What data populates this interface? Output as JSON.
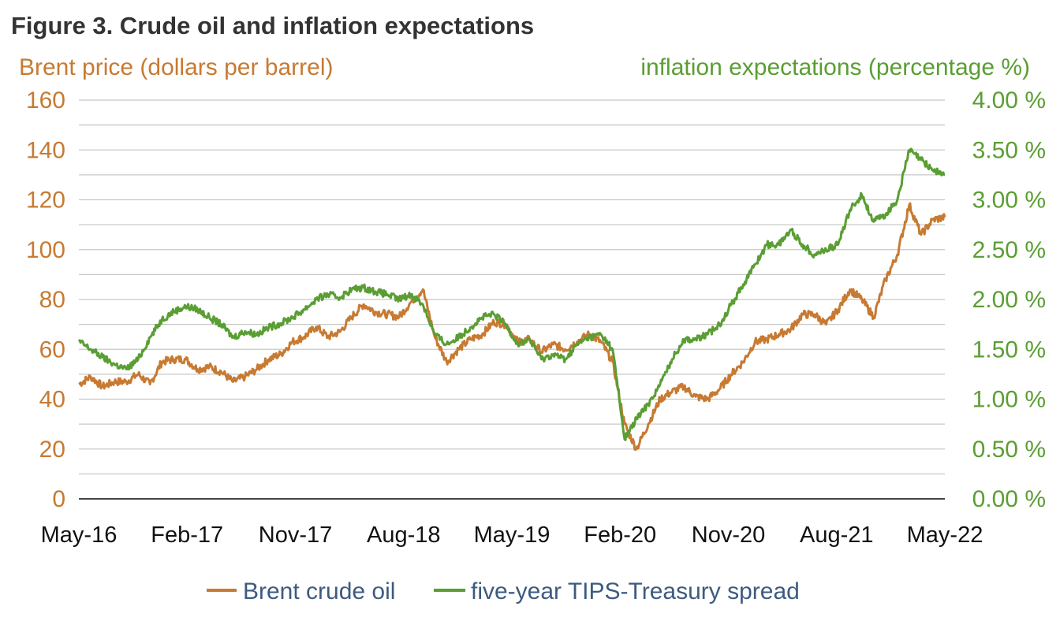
{
  "title": "Figure 3. Crude oil and inflation expectations",
  "colors": {
    "brent": "#c77a32",
    "tips": "#5a9e33",
    "grid": "#c8c8c8",
    "legend_text": "#3d5a80",
    "title": "#333333"
  },
  "chart_data": {
    "type": "line",
    "title": "Figure 3. Crude oil and inflation expectations",
    "ylabel_left": "Brent price (dollars per barrel)",
    "ylabel_right": "inflation expectations (percentage %)",
    "ylim_left": [
      0,
      160
    ],
    "ylim_right": [
      0,
      4
    ],
    "xlim": [
      "2016-05",
      "2022-06"
    ],
    "grid": true,
    "legend_position": "bottom",
    "y_ticks_left": [
      "0",
      "20",
      "40",
      "60",
      "80",
      "100",
      "120",
      "140",
      "160"
    ],
    "y_ticks_right": [
      "0.00 %",
      "0.50 %",
      "1.00 %",
      "1.50 %",
      "2.00 %",
      "2.50 %",
      "3.00 %",
      "3.50 %",
      "4.00 %"
    ],
    "x_ticks": [
      "May-16",
      "Feb-17",
      "Nov-17",
      "Aug-18",
      "May-19",
      "Feb-20",
      "Nov-20",
      "Aug-21",
      "May-22"
    ],
    "series": [
      {
        "name": "Brent crude oil",
        "axis": "left",
        "color": "#c77a32",
        "points": [
          [
            "2016-05",
            46
          ],
          [
            "2016-06",
            49
          ],
          [
            "2016-07",
            45
          ],
          [
            "2016-08",
            47
          ],
          [
            "2016-09",
            47
          ],
          [
            "2016-10",
            50
          ],
          [
            "2016-11",
            46
          ],
          [
            "2016-12",
            55
          ],
          [
            "2017-01",
            56
          ],
          [
            "2017-02",
            56
          ],
          [
            "2017-03",
            52
          ],
          [
            "2017-04",
            53
          ],
          [
            "2017-05",
            51
          ],
          [
            "2017-06",
            47
          ],
          [
            "2017-07",
            49
          ],
          [
            "2017-08",
            52
          ],
          [
            "2017-09",
            56
          ],
          [
            "2017-10",
            58
          ],
          [
            "2017-11",
            63
          ],
          [
            "2017-12",
            65
          ],
          [
            "2018-01",
            69
          ],
          [
            "2018-02",
            65
          ],
          [
            "2018-03",
            67
          ],
          [
            "2018-04",
            73
          ],
          [
            "2018-05",
            78
          ],
          [
            "2018-06",
            75
          ],
          [
            "2018-07",
            74
          ],
          [
            "2018-08",
            73
          ],
          [
            "2018-09",
            79
          ],
          [
            "2018-10",
            84
          ],
          [
            "2018-11",
            65
          ],
          [
            "2018-12",
            55
          ],
          [
            "2019-01",
            60
          ],
          [
            "2019-02",
            64
          ],
          [
            "2019-03",
            66
          ],
          [
            "2019-04",
            71
          ],
          [
            "2019-05",
            70
          ],
          [
            "2019-06",
            63
          ],
          [
            "2019-07",
            64
          ],
          [
            "2019-08",
            59
          ],
          [
            "2019-09",
            62
          ],
          [
            "2019-10",
            60
          ],
          [
            "2019-11",
            63
          ],
          [
            "2019-12",
            66
          ],
          [
            "2020-01",
            63
          ],
          [
            "2020-02",
            55
          ],
          [
            "2020-03",
            30
          ],
          [
            "2020-04",
            20
          ],
          [
            "2020-05",
            30
          ],
          [
            "2020-06",
            40
          ],
          [
            "2020-07",
            43
          ],
          [
            "2020-08",
            45
          ],
          [
            "2020-09",
            41
          ],
          [
            "2020-10",
            40
          ],
          [
            "2020-11",
            44
          ],
          [
            "2020-12",
            50
          ],
          [
            "2021-01",
            55
          ],
          [
            "2021-02",
            63
          ],
          [
            "2021-03",
            64
          ],
          [
            "2021-04",
            66
          ],
          [
            "2021-05",
            68
          ],
          [
            "2021-06",
            74
          ],
          [
            "2021-07",
            74
          ],
          [
            "2021-08",
            70
          ],
          [
            "2021-09",
            76
          ],
          [
            "2021-10",
            84
          ],
          [
            "2021-11",
            80
          ],
          [
            "2021-12",
            73
          ],
          [
            "2022-01",
            88
          ],
          [
            "2022-02",
            98
          ],
          [
            "2022-03",
            118
          ],
          [
            "2022-04",
            106
          ],
          [
            "2022-05",
            112
          ],
          [
            "2022-06",
            113
          ]
        ]
      },
      {
        "name": "five-year TIPS-Treasury spread",
        "axis": "right",
        "color": "#5a9e33",
        "points": [
          [
            "2016-05",
            1.58
          ],
          [
            "2016-06",
            1.5
          ],
          [
            "2016-07",
            1.42
          ],
          [
            "2016-08",
            1.35
          ],
          [
            "2016-09",
            1.3
          ],
          [
            "2016-10",
            1.4
          ],
          [
            "2016-11",
            1.62
          ],
          [
            "2016-12",
            1.8
          ],
          [
            "2017-01",
            1.88
          ],
          [
            "2017-02",
            1.93
          ],
          [
            "2017-03",
            1.9
          ],
          [
            "2017-04",
            1.82
          ],
          [
            "2017-05",
            1.75
          ],
          [
            "2017-06",
            1.62
          ],
          [
            "2017-07",
            1.68
          ],
          [
            "2017-08",
            1.65
          ],
          [
            "2017-09",
            1.72
          ],
          [
            "2017-10",
            1.76
          ],
          [
            "2017-11",
            1.82
          ],
          [
            "2017-12",
            1.9
          ],
          [
            "2018-01",
            2.0
          ],
          [
            "2018-02",
            2.05
          ],
          [
            "2018-03",
            2.02
          ],
          [
            "2018-04",
            2.1
          ],
          [
            "2018-05",
            2.12
          ],
          [
            "2018-06",
            2.08
          ],
          [
            "2018-07",
            2.05
          ],
          [
            "2018-08",
            2.0
          ],
          [
            "2018-09",
            2.05
          ],
          [
            "2018-10",
            1.95
          ],
          [
            "2018-11",
            1.65
          ],
          [
            "2018-12",
            1.55
          ],
          [
            "2019-01",
            1.62
          ],
          [
            "2019-02",
            1.72
          ],
          [
            "2019-03",
            1.82
          ],
          [
            "2019-04",
            1.85
          ],
          [
            "2019-05",
            1.75
          ],
          [
            "2019-06",
            1.55
          ],
          [
            "2019-07",
            1.6
          ],
          [
            "2019-08",
            1.4
          ],
          [
            "2019-09",
            1.45
          ],
          [
            "2019-10",
            1.4
          ],
          [
            "2019-11",
            1.55
          ],
          [
            "2019-12",
            1.62
          ],
          [
            "2020-01",
            1.65
          ],
          [
            "2020-02",
            1.5
          ],
          [
            "2020-03",
            0.6
          ],
          [
            "2020-04",
            0.8
          ],
          [
            "2020-05",
            0.95
          ],
          [
            "2020-06",
            1.15
          ],
          [
            "2020-07",
            1.4
          ],
          [
            "2020-08",
            1.6
          ],
          [
            "2020-09",
            1.6
          ],
          [
            "2020-10",
            1.65
          ],
          [
            "2020-11",
            1.75
          ],
          [
            "2020-12",
            1.95
          ],
          [
            "2021-01",
            2.15
          ],
          [
            "2021-02",
            2.35
          ],
          [
            "2021-03",
            2.55
          ],
          [
            "2021-04",
            2.55
          ],
          [
            "2021-05",
            2.7
          ],
          [
            "2021-06",
            2.55
          ],
          [
            "2021-07",
            2.45
          ],
          [
            "2021-08",
            2.5
          ],
          [
            "2021-09",
            2.55
          ],
          [
            "2021-10",
            2.9
          ],
          [
            "2021-11",
            3.05
          ],
          [
            "2021-12",
            2.78
          ],
          [
            "2022-01",
            2.85
          ],
          [
            "2022-02",
            3.0
          ],
          [
            "2022-03",
            3.5
          ],
          [
            "2022-04",
            3.4
          ],
          [
            "2022-05",
            3.3
          ],
          [
            "2022-06",
            3.25
          ]
        ]
      }
    ]
  }
}
